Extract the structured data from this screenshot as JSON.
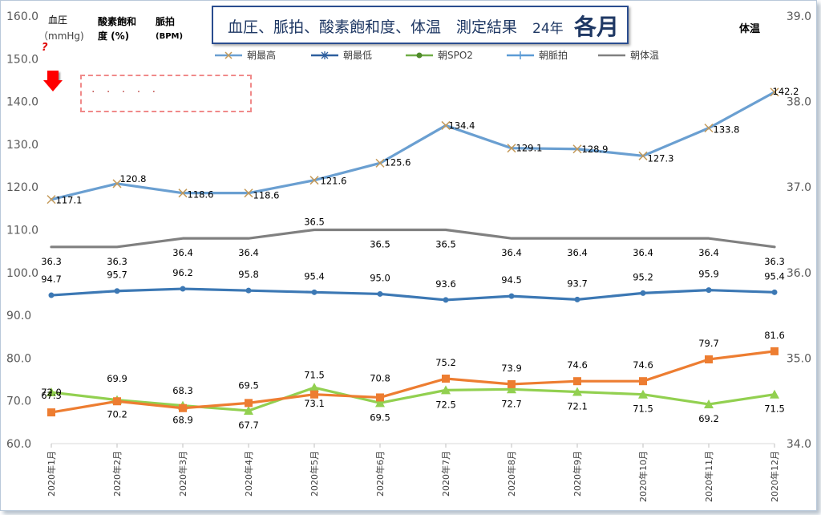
{
  "title": {
    "main": "血圧、脈拍、酸素飽和度、体温　測定結果",
    "year": "24年",
    "month": "各月"
  },
  "headers": {
    "bp": "血圧",
    "bp_unit": "（mmHg)",
    "spo2_line1": "酸素飽和",
    "spo2_line2": "度 (%)",
    "pulse_line1": "脈拍",
    "pulse_line2": "(BPM)",
    "temp": "体温"
  },
  "annotation": {
    "question_mark": "?",
    "dots": ". . . . .",
    "arrow_color": "#ff0000"
  },
  "chart_data": {
    "type": "line",
    "categories": [
      "2020年1月",
      "2020年2月",
      "2020年3月",
      "2020年4月",
      "2020年5月",
      "2020年6月",
      "2020年7月",
      "2020年8月",
      "2020年9月",
      "2020年10月",
      "2020年11月",
      "2020年12月"
    ],
    "y_left": {
      "min": 60,
      "max": 160,
      "ticks": [
        "60.0",
        "70.0",
        "80.0",
        "90.0",
        "100.0",
        "110.0",
        "120.0",
        "130.0",
        "140.0",
        "150.0",
        "160.0"
      ]
    },
    "y_right": {
      "min": 34,
      "max": 39,
      "ticks": [
        "34.0",
        "35.0",
        "36.0",
        "37.0",
        "38.0",
        "39.0"
      ]
    },
    "grid": false,
    "legend_position": "top",
    "series": [
      {
        "name": "朝最高",
        "axis": "left",
        "color": "#6a9fd1",
        "marker": "x",
        "marker_color": "#c49a5a",
        "values": [
          117.1,
          120.8,
          118.6,
          118.6,
          121.6,
          125.6,
          134.4,
          129.1,
          128.9,
          127.3,
          133.8,
          142.2
        ],
        "labels": [
          "117.1",
          "120.8",
          "118.6",
          "118.6",
          "121.6",
          "125.6",
          "134.4",
          "129.1",
          "128.9",
          "127.3",
          "133.8",
          "142.2"
        ]
      },
      {
        "name": "朝最低",
        "axis": "left",
        "color": "#3c78b4",
        "marker": "dot",
        "marker_color": "#3c78b4",
        "values": [
          94.7,
          95.7,
          96.2,
          95.8,
          95.4,
          95.0,
          93.6,
          94.5,
          93.7,
          95.2,
          95.9,
          95.4
        ],
        "labels": [
          "94.7",
          "95.7",
          "96.2",
          "95.8",
          "95.4",
          "95.0",
          "93.6",
          "94.5",
          "93.7",
          "95.2",
          "95.9",
          "95.4"
        ]
      },
      {
        "name": "朝SPO2",
        "axis": "left",
        "color": "#92d050",
        "marker": "triangle",
        "marker_color": "#92d050",
        "values": [
          72.0,
          70.2,
          68.9,
          67.7,
          73.1,
          69.5,
          72.5,
          72.7,
          72.1,
          71.5,
          69.2,
          71.5
        ],
        "labels": [
          "72.0",
          "70.2",
          "68.9",
          "67.7",
          "73.1",
          "69.5",
          "72.5",
          "72.7",
          "72.1",
          "71.5",
          "69.2",
          "71.5"
        ]
      },
      {
        "name": "朝脈拍",
        "axis": "left",
        "color": "#ed7d31",
        "marker": "square",
        "marker_color": "#ed7d31",
        "values": [
          67.3,
          69.9,
          68.3,
          69.5,
          71.5,
          70.8,
          75.2,
          73.9,
          74.6,
          74.6,
          79.7,
          81.6
        ],
        "labels": [
          "67.3",
          "69.9",
          "68.3",
          "69.5",
          "71.5",
          "70.8",
          "75.2",
          "73.9",
          "74.6",
          "74.6",
          "79.7",
          "81.6"
        ]
      },
      {
        "name": "朝体温",
        "axis": "right",
        "color": "#808080",
        "marker": "none",
        "marker_color": "#808080",
        "values": [
          36.3,
          36.3,
          36.4,
          36.4,
          36.5,
          36.5,
          36.5,
          36.4,
          36.4,
          36.4,
          36.4,
          36.3
        ],
        "labels": [
          "36.3",
          "36.3",
          "36.4",
          "36.4",
          "36.5",
          "36.5",
          "36.5",
          "36.4",
          "36.4",
          "36.4",
          "36.4",
          "36.3"
        ]
      }
    ],
    "legend_entries": [
      {
        "label": "朝最高",
        "color": "#6a9fd1",
        "marker": "x",
        "marker_color": "#c49a5a"
      },
      {
        "label": "朝最低",
        "color": "#2e5f9e",
        "marker": "asterisk",
        "marker_color": "#2e5f9e"
      },
      {
        "label": "朝SPO2",
        "color": "#70ad47",
        "marker": "dot",
        "marker_color": "#4f8a2a"
      },
      {
        "label": "朝脈拍",
        "color": "#5b9bd5",
        "marker": "plus",
        "marker_color": "#5b9bd5"
      },
      {
        "label": "朝体温",
        "color": "#808080",
        "marker": "none",
        "marker_color": "#808080"
      }
    ]
  }
}
